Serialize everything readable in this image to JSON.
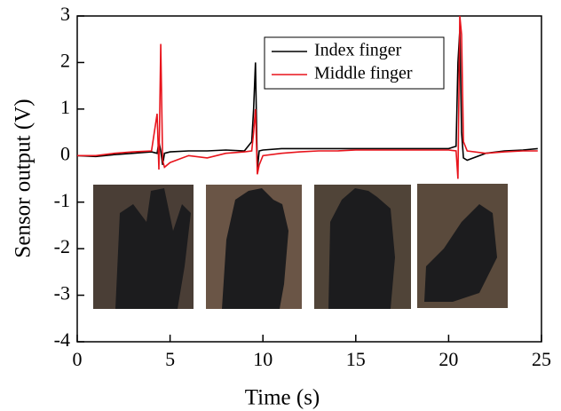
{
  "chart_data": {
    "type": "line",
    "x_label": "Time (s)",
    "y_label": "Sensor output (V)",
    "xlim": [
      0,
      25
    ],
    "ylim": [
      -4,
      3
    ],
    "xticks": [
      0,
      5,
      10,
      15,
      20,
      25
    ],
    "yticks": [
      -4,
      -3,
      -2,
      -1,
      0,
      1,
      2,
      3
    ],
    "legend_position": "upper right",
    "x": [
      0,
      1,
      2,
      3,
      4,
      4.3,
      4.4,
      4.5,
      4.6,
      4.7,
      5,
      6,
      7,
      8,
      9,
      9.4,
      9.5,
      9.6,
      9.7,
      9.8,
      10,
      11,
      12,
      13,
      14,
      15,
      16,
      17,
      18,
      19,
      20,
      20.4,
      20.5,
      20.6,
      20.7,
      20.8,
      21,
      22,
      23,
      24,
      24.8
    ],
    "series": [
      {
        "name": "Index finger",
        "color": "#000000",
        "values": [
          0,
          -0.02,
          0.02,
          0.05,
          0.08,
          0.05,
          0.3,
          0.1,
          -0.2,
          0.05,
          0.08,
          0.1,
          0.1,
          0.12,
          0.1,
          0.3,
          1.0,
          2.0,
          -0.3,
          0.1,
          0.12,
          0.15,
          0.15,
          0.15,
          0.15,
          0.15,
          0.15,
          0.15,
          0.15,
          0.15,
          0.15,
          0.2,
          2.0,
          2.7,
          0.5,
          -0.05,
          -0.1,
          0.05,
          0.1,
          0.12,
          0.15
        ]
      },
      {
        "name": "Middle finger",
        "color": "#e8141c",
        "values": [
          0,
          0,
          0.05,
          0.08,
          0.1,
          0.9,
          -0.3,
          2.4,
          -0.1,
          -0.25,
          -0.15,
          0,
          -0.05,
          0.05,
          0.08,
          0.1,
          0.5,
          1.0,
          -0.4,
          -0.2,
          0,
          0.05,
          0.08,
          0.1,
          0.1,
          0.12,
          0.12,
          0.12,
          0.12,
          0.12,
          0.12,
          0.1,
          -0.5,
          3.0,
          2.6,
          0.3,
          0.1,
          0.05,
          0.08,
          0.1,
          0.1
        ]
      }
    ]
  }
}
